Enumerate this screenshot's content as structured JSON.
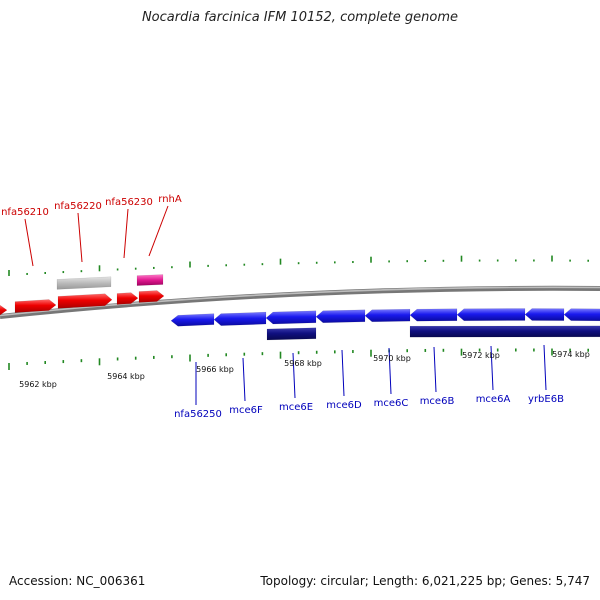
{
  "title": "Nocardia farcinica IFM 10152, complete genome",
  "footer": {
    "accession": "Accession: NC_006361",
    "summary": "Topology: circular; Length: 6,021,225 bp; Genes: 5,747"
  },
  "colors": {
    "forward_gene": "#ee0000",
    "reverse_gene": "#1a1aee",
    "reverse_operon": "#101080",
    "pseudogene": "#bbbbbb",
    "rna_gene": "#e0198f",
    "tick": "#228822",
    "backbone": "#888888"
  },
  "top_labels": [
    {
      "text": "nfa56210"
    },
    {
      "text": "nfa56220"
    },
    {
      "text": "nfa56230"
    },
    {
      "text": "rnhA"
    }
  ],
  "bottom_labels": [
    {
      "text": "nfa56250"
    },
    {
      "text": "mce6F"
    },
    {
      "text": "mce6E"
    },
    {
      "text": "mce6D"
    },
    {
      "text": "mce6C"
    },
    {
      "text": "mce6B"
    },
    {
      "text": "mce6A"
    },
    {
      "text": "yrbE6B"
    }
  ],
  "kbp_labels": [
    {
      "text": "5962 kbp"
    },
    {
      "text": "5964 kbp"
    },
    {
      "text": "5966 kbp"
    },
    {
      "text": "5968 kbp"
    },
    {
      "text": "5970 kbp"
    },
    {
      "text": "5972 kbp"
    },
    {
      "text": "5974 kbp"
    }
  ]
}
